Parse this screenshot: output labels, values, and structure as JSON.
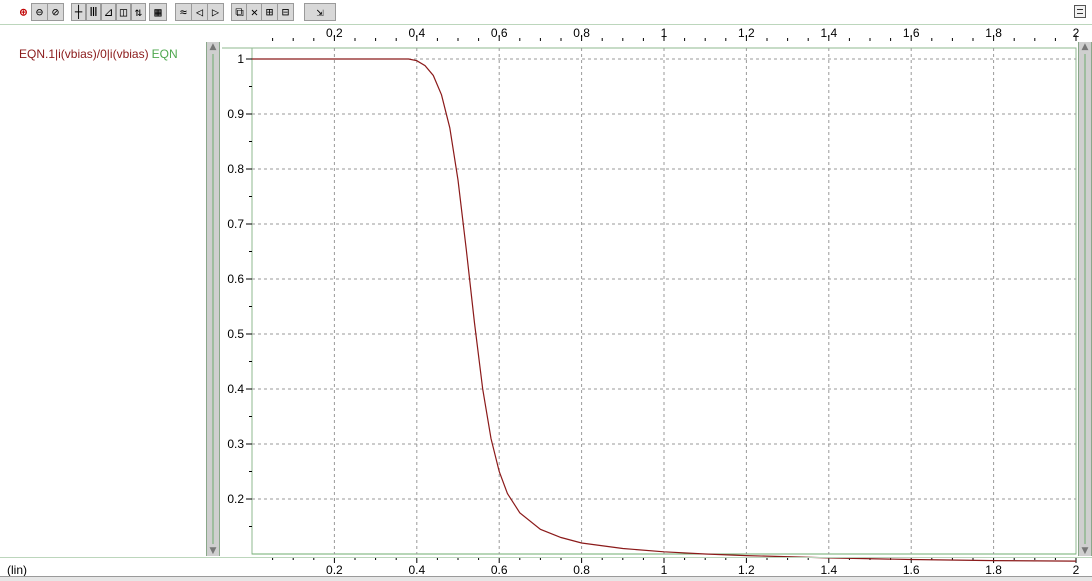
{
  "toolbar": {
    "buttons": [
      {
        "name": "zoom-in-icon",
        "glyph": "⊕"
      },
      {
        "name": "zoom-out-icon",
        "glyph": "⊖"
      },
      {
        "name": "zoom-fit-icon",
        "glyph": "⊘"
      },
      {
        "name": "cursor-icon",
        "glyph": "┼"
      },
      {
        "name": "vertical-grid-icon",
        "glyph": "Ⅲ"
      },
      {
        "name": "scale-icon",
        "glyph": "⊿"
      },
      {
        "name": "marker-icon",
        "glyph": "◫"
      },
      {
        "name": "measure-icon",
        "glyph": "⇅"
      },
      {
        "name": "grid-icon",
        "glyph": "▦"
      },
      {
        "name": "wave-icon",
        "glyph": "≈"
      },
      {
        "name": "previous-icon",
        "glyph": "◁"
      },
      {
        "name": "next-icon",
        "glyph": "▷"
      },
      {
        "name": "copy-icon",
        "glyph": "⧉"
      },
      {
        "name": "delete-icon",
        "glyph": "✕"
      },
      {
        "name": "split-icon",
        "glyph": "⊞"
      },
      {
        "name": "panels-icon",
        "glyph": "⊟"
      },
      {
        "name": "export-icon",
        "glyph": "⇲"
      }
    ]
  },
  "legend": {
    "trace_label": "EQN.1|i(vbias)/0|i(vbias)",
    "group_label": "EQN"
  },
  "bottom": {
    "scale_label": "(lin)"
  },
  "colors": {
    "trace": "#8b1a1a",
    "grid": "#9a9a9a",
    "frame": "#8fb88f",
    "legend_group": "#4fa84f"
  },
  "chart_data": {
    "type": "line",
    "title": "",
    "xlabel": "",
    "ylabel": "",
    "xlim": [
      0.0,
      2.0
    ],
    "ylim": [
      0.1,
      1.02
    ],
    "x_ticks": [
      0.2,
      0.4,
      0.6,
      0.8,
      1,
      1.2,
      1.4,
      1.6,
      1.8,
      2
    ],
    "x_tick_labels": [
      "0.2",
      "0.4",
      "0.6",
      "0.8",
      "1",
      "1.2",
      "1.4",
      "1.6",
      "1.8",
      "2"
    ],
    "y_ticks": [
      0.2,
      0.3,
      0.4,
      0.5,
      0.6,
      0.7,
      0.8,
      0.9,
      1
    ],
    "y_tick_labels": [
      "0.2",
      "0.3",
      "0.4",
      "0.5",
      "0.6",
      "0.7",
      "0.8",
      "0.9",
      "1"
    ],
    "grid": true,
    "series": [
      {
        "name": "EQN.1|i(vbias)/0|i(vbias)",
        "color": "#8b1a1a",
        "x": [
          0.0,
          0.1,
          0.2,
          0.3,
          0.38,
          0.4,
          0.42,
          0.44,
          0.46,
          0.48,
          0.5,
          0.52,
          0.54,
          0.56,
          0.58,
          0.6,
          0.62,
          0.65,
          0.7,
          0.75,
          0.8,
          0.9,
          1.0,
          1.1,
          1.2,
          1.4,
          1.6,
          1.8,
          2.0
        ],
        "y": [
          1.0,
          1.0,
          1.0,
          1.0,
          1.0,
          0.997,
          0.988,
          0.97,
          0.935,
          0.875,
          0.78,
          0.655,
          0.52,
          0.4,
          0.31,
          0.25,
          0.21,
          0.175,
          0.145,
          0.13,
          0.12,
          0.11,
          0.104,
          0.1,
          0.097,
          0.093,
          0.09,
          0.088,
          0.087
        ]
      }
    ]
  }
}
